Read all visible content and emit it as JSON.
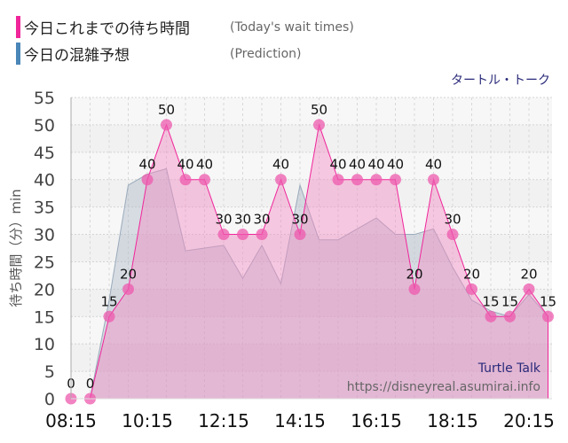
{
  "legend": [
    {
      "label": "今日これまでの待ち時間",
      "sublabel": "(Today's wait times)",
      "color": "#f0259a"
    },
    {
      "label": "今日の混雑予想",
      "sublabel": "(Prediction)",
      "color": "#4a86b8"
    }
  ],
  "attraction": "タートル・トーク",
  "watermark": {
    "name": "Turtle Talk",
    "url": "https://disneyreal.asumirai.info"
  },
  "chart_data": {
    "type": "area",
    "ylabel": "待ち時間（分）min",
    "ylim": [
      0,
      55
    ],
    "yticks": [
      0,
      5,
      10,
      15,
      20,
      25,
      30,
      35,
      40,
      45,
      50,
      55
    ],
    "xtick_labels": [
      "08:15",
      "10:15",
      "12:15",
      "14:15",
      "16:15",
      "18:15",
      "20:15"
    ],
    "grid": true,
    "x": [
      "08:15",
      "08:45",
      "09:15",
      "09:45",
      "10:15",
      "10:45",
      "11:15",
      "11:45",
      "12:15",
      "12:45",
      "13:15",
      "13:45",
      "14:15",
      "14:45",
      "15:15",
      "15:45",
      "16:15",
      "16:45",
      "17:15",
      "17:45",
      "18:15",
      "18:45",
      "19:15",
      "19:45",
      "20:15",
      "20:45"
    ],
    "series": [
      {
        "name": "今日これまでの待ち時間",
        "color": "#f0259a",
        "data_labels": true,
        "values": [
          0,
          0,
          15,
          20,
          40,
          50,
          40,
          40,
          30,
          30,
          30,
          40,
          30,
          50,
          40,
          40,
          40,
          40,
          20,
          40,
          30,
          20,
          15,
          15,
          20,
          15
        ]
      },
      {
        "name": "今日の混雑予想",
        "color": "#9aaabb",
        "values": [
          0,
          0,
          18,
          39,
          41,
          42,
          27,
          27.5,
          28,
          22,
          28,
          21,
          39,
          29,
          29,
          31,
          33,
          30,
          30,
          31,
          24,
          18,
          16,
          15,
          19,
          15
        ]
      }
    ]
  }
}
